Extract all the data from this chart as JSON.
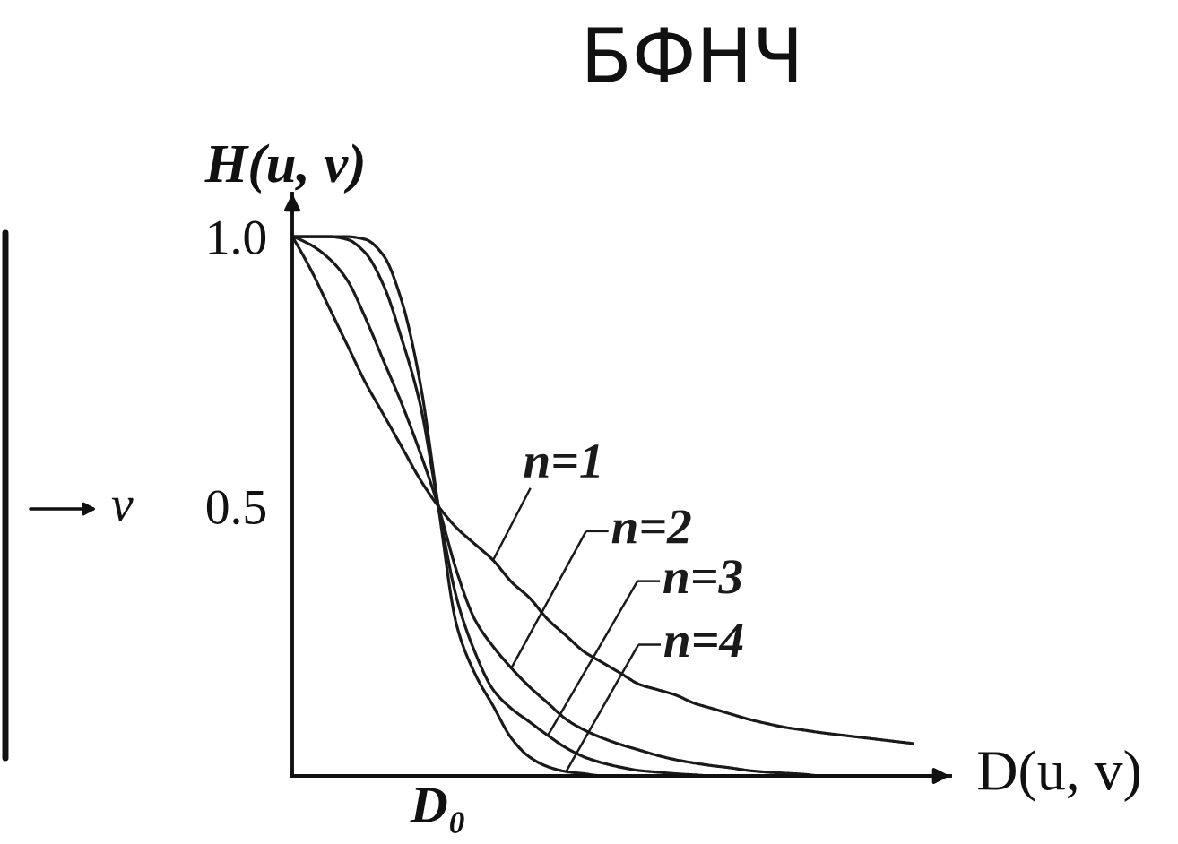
{
  "chart_data": {
    "type": "line",
    "title": "БФНЧ",
    "xlabel": "D(u, v)",
    "ylabel": "H(u, v)",
    "categories": [
      null,
      null,
      null,
      null,
      null,
      null,
      null,
      null,
      "D₀",
      null,
      null,
      null,
      null,
      null,
      null,
      null,
      null,
      null,
      null,
      null,
      null,
      null,
      null,
      null,
      null,
      null,
      null,
      null,
      null,
      null,
      null,
      null,
      null,
      null,
      null
    ],
    "ylim": [
      0,
      1.08
    ],
    "yticks": [
      {
        "value": 0.5,
        "label": "0.5"
      },
      {
        "value": 1,
        "label": "1.0"
      }
    ],
    "legend": "center",
    "annotations": [
      "v"
    ],
    "series": [
      {
        "name": "n=1",
        "color": "#1a1a1a",
        "values": [
          1.0,
          0.94,
          0.87,
          0.8,
          0.73,
          0.67,
          0.61,
          0.55,
          0.5,
          0.46,
          0.43,
          0.4,
          0.36,
          0.33,
          0.29,
          0.26,
          0.23,
          0.21,
          0.19,
          0.17,
          0.16,
          0.15,
          0.135,
          0.125,
          0.115,
          0.105,
          0.097,
          0.09,
          0.085,
          0.08,
          0.076,
          0.072,
          0.068,
          0.064,
          0.06
        ]
      },
      {
        "name": "n=2",
        "color": "#1a1a1a",
        "values": [
          1.0,
          0.985,
          0.96,
          0.92,
          0.85,
          0.77,
          0.69,
          0.6,
          0.5,
          0.38,
          0.29,
          0.24,
          0.2,
          0.165,
          0.135,
          0.105,
          0.085,
          0.07,
          0.058,
          0.048,
          0.038,
          0.03,
          0.024,
          0.019,
          0.015,
          0.01,
          0.007,
          0.005,
          0.003,
          0.0,
          0.0,
          0.0,
          0.0,
          0.0,
          null
        ]
      },
      {
        "name": "n=3",
        "color": "#1a1a1a",
        "values": [
          1.0,
          1.0,
          1.0,
          0.995,
          0.97,
          0.91,
          0.81,
          0.69,
          0.5,
          0.33,
          0.23,
          0.16,
          0.125,
          0.1,
          0.075,
          0.052,
          0.035,
          0.024,
          0.016,
          0.01,
          0.007,
          0.004,
          0.002,
          0.0,
          0.0,
          0.0,
          0.0,
          0.0,
          0.0,
          0.0,
          null,
          null,
          null,
          null,
          null
        ]
      },
      {
        "name": "n=4",
        "color": "#1a1a1a",
        "values": [
          1.0,
          1.0,
          1.0,
          1.0,
          0.995,
          0.965,
          0.88,
          0.73,
          0.5,
          0.28,
          0.19,
          0.13,
          0.07,
          0.035,
          0.017,
          0.008,
          0.004,
          0.0,
          0.0,
          0.0,
          0.0,
          0.0,
          0.0,
          0.0,
          0.0,
          null,
          null,
          null,
          null,
          null,
          null,
          null,
          null,
          null,
          null
        ]
      }
    ]
  }
}
